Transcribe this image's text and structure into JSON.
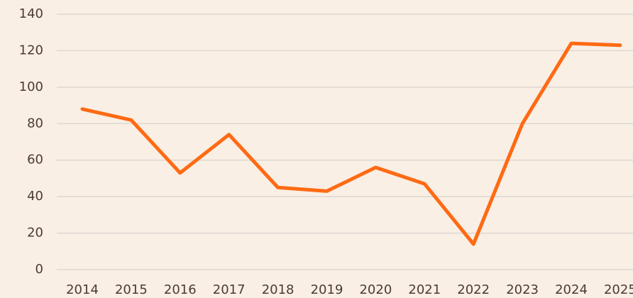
{
  "chart_data": {
    "type": "line",
    "categories": [
      "2014",
      "2015",
      "2016",
      "2017",
      "2018",
      "2019",
      "2020",
      "2021",
      "2022",
      "2023",
      "2024",
      "2025"
    ],
    "series": [
      {
        "color": "#ff6a13",
        "values": [
          88,
          82,
          53,
          74,
          45,
          43,
          56,
          47,
          14,
          80,
          124,
          123
        ]
      }
    ],
    "ylim": [
      0,
      140
    ],
    "yticks": [
      0,
      20,
      40,
      60,
      80,
      100,
      120,
      140
    ],
    "grid": true
  }
}
